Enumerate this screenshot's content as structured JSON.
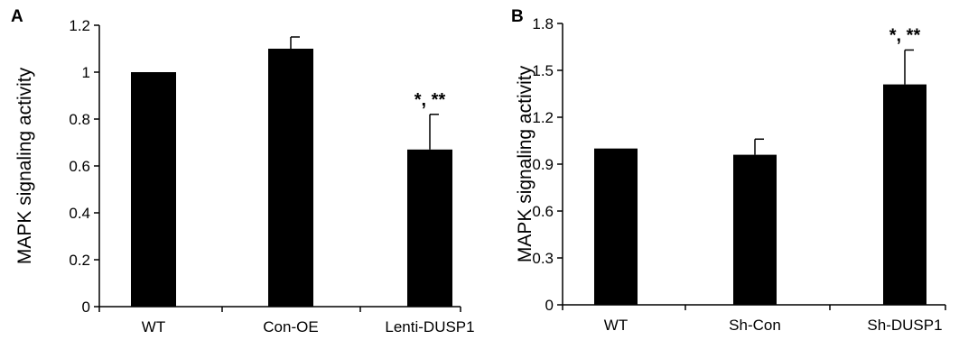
{
  "chart_data": [
    {
      "type": "bar",
      "panel": "A",
      "ylabel": "MAPK signaling activity",
      "ylim": [
        0,
        1.2
      ],
      "yticks": [
        "0",
        "0.2",
        "0.4",
        "0.6",
        "0.8",
        "1",
        "1.2"
      ],
      "categories": [
        "WT",
        "Con-OE",
        "Lenti-DUSP1"
      ],
      "values": [
        1.0,
        1.1,
        0.67
      ],
      "errors": [
        0,
        0.05,
        0.15
      ],
      "annotations": [
        "",
        "",
        "*, **"
      ]
    },
    {
      "type": "bar",
      "panel": "B",
      "ylabel": "MAPK signaling activity",
      "ylim": [
        0,
        1.8
      ],
      "yticks": [
        "0",
        "0.3",
        "0.6",
        "0.9",
        "1.2",
        "1.5",
        "1.8"
      ],
      "categories": [
        "WT",
        "Sh-Con",
        "Sh-DUSP1"
      ],
      "values": [
        1.0,
        0.96,
        1.41
      ],
      "errors": [
        0,
        0.1,
        0.22
      ],
      "annotations": [
        "",
        "",
        "*, **"
      ]
    }
  ],
  "colors": {
    "bar": "#000000",
    "axis": "#000000",
    "background": "#ffffff"
  }
}
